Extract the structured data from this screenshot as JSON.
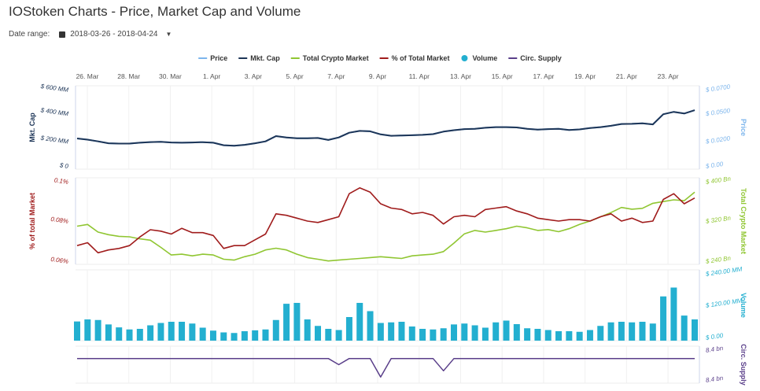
{
  "header": {
    "title": "IOStoken Charts - Price, Market Cap and Volume",
    "date_range_label": "Date range:",
    "date_range_value": "2018-03-26 - 2018-04-24",
    "calendar_icon": "calendar-icon",
    "dropdown_icon": "caret-down-icon"
  },
  "chart_data": {
    "type": "line",
    "legend": {
      "placement": "top-center",
      "items": [
        {
          "name": "Price",
          "color": "#7cb5ec",
          "marker": "line"
        },
        {
          "name": "Mkt. Cap",
          "color": "#1d3557",
          "marker": "line"
        },
        {
          "name": "Total Crypto Market",
          "color": "#90c632",
          "marker": "line"
        },
        {
          "name": "% of Total Market",
          "color": "#a01c1c",
          "marker": "line"
        },
        {
          "name": "Volume",
          "color": "#23afd0",
          "marker": "circle"
        },
        {
          "name": "Circ. Supply",
          "color": "#5a3f8a",
          "marker": "line"
        }
      ]
    },
    "x_range": [
      "2018-03-25 12:00",
      "2018-04-24 06:00"
    ],
    "x_ticks": [
      "26. Mar",
      "28. Mar",
      "30. Mar",
      "1. Apr",
      "3. Apr",
      "5. Apr",
      "7. Apr",
      "9. Apr",
      "11. Apr",
      "13. Apr",
      "15. Apr",
      "17. Apr",
      "19. Apr",
      "21. Apr",
      "23. Apr"
    ],
    "grid": true,
    "panels": [
      {
        "left_label": "Mkt. Cap",
        "left_ticks": [
          "$ 0",
          "$ 200 MM",
          "$ 400 MM",
          "$ 600 MM"
        ],
        "left_range": [
          0,
          600
        ],
        "right_label": "Price",
        "right_ticks": [
          "$ 0.00",
          "$ 0.0200",
          "$ 0.0500",
          "$ 0.0700"
        ],
        "right_range": [
          0,
          0.07
        ]
      },
      {
        "left_label": "% of total Market",
        "left_ticks": [
          "0.06%",
          "0.08%",
          "0.1%"
        ],
        "left_range": [
          0.055,
          0.115
        ],
        "right_label": "Total Crypto Market",
        "right_ticks": [
          "$ 240 Bn",
          "$ 320 Bn",
          "$ 400 Bn"
        ],
        "right_range": [
          228,
          432
        ]
      },
      {
        "right_label": "Volume",
        "right_ticks": [
          "$ 0.00",
          "$ 120.00 MM",
          "$ 240.00 MM"
        ],
        "right_range": [
          0,
          240
        ]
      },
      {
        "right_label": "Circ. Supply",
        "right_ticks": [
          "8.4 bn",
          "8.4 bn"
        ],
        "right_range": [
          8.36,
          8.42
        ]
      }
    ],
    "series": [
      {
        "name": "Mkt. Cap",
        "unit": "$ MM",
        "values": [
          221,
          212,
          200,
          186,
          184,
          184,
          190,
          195,
          197,
          192,
          190,
          192,
          194,
          190,
          172,
          168,
          175,
          186,
          200,
          238,
          228,
          222,
          222,
          224,
          210,
          228,
          262,
          275,
          272,
          250,
          240,
          242,
          244,
          247,
          252,
          270,
          280,
          288,
          290,
          298,
          302,
          302,
          300,
          290,
          285,
          288,
          290,
          282,
          286,
          296,
          302,
          312,
          325,
          326,
          330,
          322,
          395,
          412,
          400,
          424
        ]
      },
      {
        "name": "% of Total Market",
        "unit": "%",
        "values": [
          0.068,
          0.07,
          0.063,
          0.065,
          0.066,
          0.068,
          0.074,
          0.079,
          0.078,
          0.076,
          0.08,
          0.077,
          0.077,
          0.075,
          0.066,
          0.068,
          0.068,
          0.072,
          0.076,
          0.09,
          0.089,
          0.087,
          0.085,
          0.084,
          0.086,
          0.088,
          0.104,
          0.108,
          0.105,
          0.097,
          0.094,
          0.093,
          0.09,
          0.091,
          0.089,
          0.083,
          0.088,
          0.089,
          0.088,
          0.093,
          0.094,
          0.095,
          0.092,
          0.09,
          0.087,
          0.086,
          0.085,
          0.086,
          0.086,
          0.085,
          0.088,
          0.09,
          0.085,
          0.087,
          0.084,
          0.085,
          0.1,
          0.104,
          0.097,
          0.101
        ]
      },
      {
        "name": "Total Crypto Market",
        "unit": "$ Bn",
        "values": [
          318,
          322,
          304,
          298,
          294,
          293,
          288,
          285,
          268,
          250,
          252,
          248,
          252,
          250,
          240,
          238,
          246,
          252,
          262,
          266,
          262,
          252,
          244,
          240,
          236,
          238,
          240,
          242,
          244,
          246,
          244,
          242,
          248,
          250,
          252,
          258,
          278,
          300,
          308,
          304,
          308,
          312,
          318,
          314,
          308,
          310,
          305,
          312,
          322,
          330,
          340,
          350,
          362,
          358,
          360,
          372,
          376,
          380,
          378,
          398
        ]
      },
      {
        "name": "Volume",
        "unit": "$ MM",
        "values": [
          65,
          72,
          70,
          55,
          45,
          38,
          40,
          52,
          60,
          64,
          64,
          58,
          44,
          34,
          28,
          26,
          32,
          35,
          38,
          70,
          125,
          128,
          72,
          50,
          40,
          36,
          80,
          128,
          100,
          60,
          62,
          64,
          48,
          40,
          38,
          42,
          55,
          58,
          52,
          44,
          62,
          68,
          56,
          42,
          40,
          36,
          32,
          32,
          30,
          36,
          50,
          62,
          64,
          62,
          64,
          58,
          150,
          180,
          85,
          72
        ]
      },
      {
        "name": "Circ. Supply",
        "unit": "bn",
        "values": [
          8.4,
          8.4,
          8.4,
          8.4,
          8.4,
          8.4,
          8.4,
          8.4,
          8.4,
          8.4,
          8.4,
          8.4,
          8.4,
          8.4,
          8.4,
          8.4,
          8.4,
          8.4,
          8.4,
          8.4,
          8.4,
          8.4,
          8.4,
          8.4,
          8.4,
          8.39,
          8.4,
          8.4,
          8.4,
          8.37,
          8.4,
          8.4,
          8.4,
          8.4,
          8.4,
          8.38,
          8.4,
          8.4,
          8.4,
          8.4,
          8.4,
          8.4,
          8.4,
          8.4,
          8.4,
          8.4,
          8.4,
          8.4,
          8.4,
          8.4,
          8.4,
          8.4,
          8.4,
          8.4,
          8.4,
          8.4,
          8.4,
          8.4,
          8.4,
          8.4
        ]
      }
    ]
  }
}
